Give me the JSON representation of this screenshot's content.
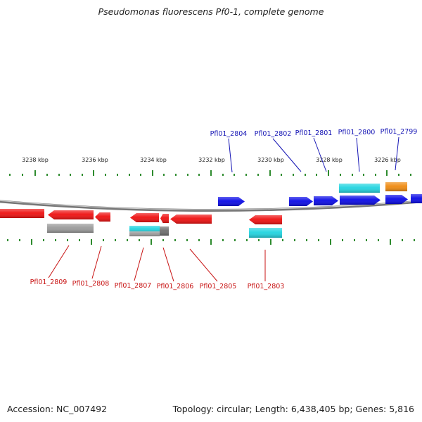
{
  "title": "Pseudomonas fluorescens Pf0-1, complete genome",
  "footer": {
    "accession": "Accession: NC_007492",
    "summary": "Topology: circular; Length: 6,438,405 bp; Genes: 5,816"
  },
  "colors": {
    "forward_gene": "#0a0ae6",
    "reverse_gene": "#ee1010",
    "feature_cyan": "#22d4e0",
    "feature_orange": "#ef8a10",
    "feature_gray": "#9a9a9a",
    "tick": "#2e8b2e",
    "upper_label": "#1414b4",
    "lower_label": "#c81414",
    "backbone": "#777777"
  },
  "scale_labels": [
    "3238 kbp",
    "3236 kbp",
    "3234 kbp",
    "3232 kbp",
    "3230 kbp",
    "3228 kbp",
    "3226 kbp"
  ],
  "upper_genes": [
    "Pfl01_2804",
    "Pfl01_2802",
    "Pfl01_2801",
    "Pfl01_2800",
    "Pfl01_2799"
  ],
  "lower_genes": [
    "Pfl01_2809",
    "Pfl01_2808",
    "Pfl01_2807",
    "Pfl01_2806",
    "Pfl01_2805",
    "Pfl01_2803"
  ]
}
